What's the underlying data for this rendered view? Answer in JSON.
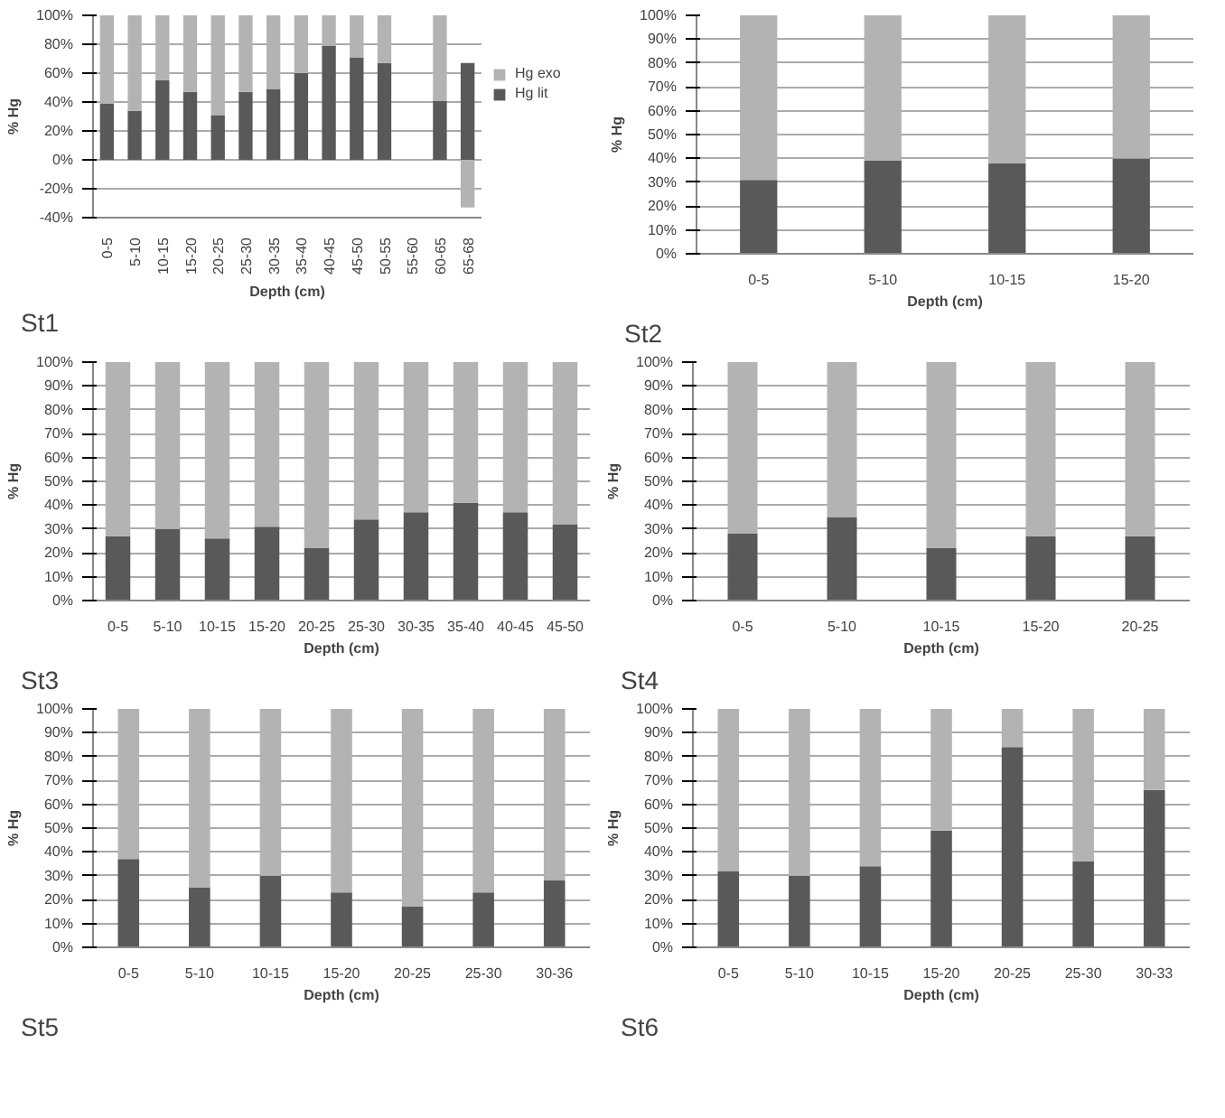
{
  "chart_data": [
    {
      "type": "bar",
      "title": "St1",
      "xlabel": "Depth (cm)",
      "ylabel": "% Hg",
      "stacked": true,
      "grid": "y",
      "legend": "right",
      "categories": [
        "0-5",
        "5-10",
        "10-15",
        "15-20",
        "20-25",
        "25-30",
        "30-35",
        "35-40",
        "40-45",
        "45-50",
        "50-55",
        "55-60",
        "60-65",
        "65-68"
      ],
      "series": [
        {
          "name": "Hg lit",
          "color": "#595959",
          "values": [
            39,
            34,
            55,
            47,
            31,
            47,
            49,
            60,
            79,
            71,
            67,
            null,
            41,
            67
          ]
        },
        {
          "name": "Hg exo",
          "color": "#b3b3b3",
          "values": [
            61,
            66,
            45,
            53,
            69,
            53,
            51,
            40,
            21,
            29,
            33,
            null,
            59,
            -33
          ]
        }
      ],
      "ylim": [
        -40,
        100
      ],
      "yticks": [
        {
          "value": -40,
          "label": "-40%"
        },
        {
          "value": -20,
          "label": "-20%"
        },
        {
          "value": 0,
          "label": "0%"
        },
        {
          "value": 20,
          "label": "20%"
        },
        {
          "value": 40,
          "label": "40%"
        },
        {
          "value": 60,
          "label": "60%"
        },
        {
          "value": 80,
          "label": "80%"
        },
        {
          "value": 100,
          "label": "100%"
        }
      ]
    },
    {
      "type": "bar",
      "title": "St2",
      "xlabel": "Depth (cm)",
      "ylabel": "% Hg",
      "stacked": true,
      "grid": "y",
      "categories": [
        "0-5",
        "5-10",
        "10-15",
        "15-20"
      ],
      "series": [
        {
          "color": "#595959",
          "values": [
            31,
            39,
            38,
            40
          ]
        },
        {
          "color": "#b3b3b3",
          "values": [
            69,
            61,
            62,
            60
          ]
        }
      ],
      "ylim": [
        0,
        100
      ],
      "yticks": [
        {
          "value": 0,
          "label": "0%"
        },
        {
          "value": 10,
          "label": "10%"
        },
        {
          "value": 20,
          "label": "20%"
        },
        {
          "value": 30,
          "label": "30%"
        },
        {
          "value": 40,
          "label": "40%"
        },
        {
          "value": 50,
          "label": "50%"
        },
        {
          "value": 60,
          "label": "60%"
        },
        {
          "value": 70,
          "label": "70%"
        },
        {
          "value": 80,
          "label": "80%"
        },
        {
          "value": 90,
          "label": "90%"
        },
        {
          "value": 100,
          "label": "100%"
        }
      ]
    },
    {
      "type": "bar",
      "title": "St3",
      "xlabel": "Depth (cm)",
      "ylabel": "% Hg",
      "stacked": true,
      "grid": "y",
      "categories": [
        "0-5",
        "5-10",
        "10-15",
        "15-20",
        "20-25",
        "25-30",
        "30-35",
        "35-40",
        "40-45",
        "45-50"
      ],
      "series": [
        {
          "color": "#595959",
          "values": [
            27,
            30,
            26,
            31,
            22,
            34,
            37,
            41,
            37,
            32
          ]
        },
        {
          "color": "#b3b3b3",
          "values": [
            73,
            70,
            74,
            69,
            78,
            66,
            63,
            59,
            63,
            68
          ]
        }
      ],
      "ylim": [
        0,
        100
      ],
      "yticks": [
        {
          "value": 0,
          "label": "0%"
        },
        {
          "value": 10,
          "label": "10%"
        },
        {
          "value": 20,
          "label": "20%"
        },
        {
          "value": 30,
          "label": "30%"
        },
        {
          "value": 40,
          "label": "40%"
        },
        {
          "value": 50,
          "label": "50%"
        },
        {
          "value": 60,
          "label": "60%"
        },
        {
          "value": 70,
          "label": "70%"
        },
        {
          "value": 80,
          "label": "80%"
        },
        {
          "value": 90,
          "label": "90%"
        },
        {
          "value": 100,
          "label": "100%"
        }
      ]
    },
    {
      "type": "bar",
      "title": "St4",
      "xlabel": "Depth (cm)",
      "ylabel": "% Hg",
      "stacked": true,
      "grid": "y",
      "categories": [
        "0-5",
        "5-10",
        "10-15",
        "15-20",
        "20-25"
      ],
      "series": [
        {
          "color": "#595959",
          "values": [
            28,
            35,
            22,
            27,
            27
          ]
        },
        {
          "color": "#b3b3b3",
          "values": [
            72,
            65,
            78,
            73,
            73
          ]
        }
      ],
      "ylim": [
        0,
        100
      ],
      "yticks": [
        {
          "value": 0,
          "label": "0%"
        },
        {
          "value": 10,
          "label": "10%"
        },
        {
          "value": 20,
          "label": "20%"
        },
        {
          "value": 30,
          "label": "30%"
        },
        {
          "value": 40,
          "label": "40%"
        },
        {
          "value": 50,
          "label": "50%"
        },
        {
          "value": 60,
          "label": "60%"
        },
        {
          "value": 70,
          "label": "70%"
        },
        {
          "value": 80,
          "label": "80%"
        },
        {
          "value": 90,
          "label": "90%"
        },
        {
          "value": 100,
          "label": "100%"
        }
      ]
    },
    {
      "type": "bar",
      "title": "St5",
      "xlabel": "Depth (cm)",
      "ylabel": "% Hg",
      "stacked": true,
      "grid": "y",
      "categories": [
        "0-5",
        "5-10",
        "10-15",
        "15-20",
        "20-25",
        "25-30",
        "30-36"
      ],
      "series": [
        {
          "color": "#595959",
          "values": [
            37,
            25,
            30,
            23,
            17,
            23,
            28
          ]
        },
        {
          "color": "#b3b3b3",
          "values": [
            63,
            75,
            70,
            77,
            83,
            77,
            72
          ]
        }
      ],
      "ylim": [
        0,
        100
      ],
      "yticks": [
        {
          "value": 0,
          "label": "0%"
        },
        {
          "value": 10,
          "label": "10%"
        },
        {
          "value": 20,
          "label": "20%"
        },
        {
          "value": 30,
          "label": "30%"
        },
        {
          "value": 40,
          "label": "40%"
        },
        {
          "value": 50,
          "label": "50%"
        },
        {
          "value": 60,
          "label": "60%"
        },
        {
          "value": 70,
          "label": "70%"
        },
        {
          "value": 80,
          "label": "80%"
        },
        {
          "value": 90,
          "label": "90%"
        },
        {
          "value": 100,
          "label": "100%"
        }
      ]
    },
    {
      "type": "bar",
      "title": "St6",
      "xlabel": "Depth (cm)",
      "ylabel": "% Hg",
      "stacked": true,
      "grid": "y",
      "categories": [
        "0-5",
        "5-10",
        "10-15",
        "15-20",
        "20-25",
        "25-30",
        "30-33"
      ],
      "series": [
        {
          "color": "#595959",
          "values": [
            32,
            30,
            34,
            49,
            84,
            36,
            66
          ]
        },
        {
          "color": "#b3b3b3",
          "values": [
            68,
            70,
            66,
            51,
            16,
            64,
            34
          ]
        }
      ],
      "ylim": [
        0,
        100
      ],
      "yticks": [
        {
          "value": 0,
          "label": "0%"
        },
        {
          "value": 10,
          "label": "10%"
        },
        {
          "value": 20,
          "label": "20%"
        },
        {
          "value": 30,
          "label": "30%"
        },
        {
          "value": 40,
          "label": "40%"
        },
        {
          "value": 50,
          "label": "50%"
        },
        {
          "value": 60,
          "label": "60%"
        },
        {
          "value": 70,
          "label": "70%"
        },
        {
          "value": 80,
          "label": "80%"
        },
        {
          "value": 90,
          "label": "90%"
        },
        {
          "value": 100,
          "label": "100%"
        }
      ]
    }
  ]
}
